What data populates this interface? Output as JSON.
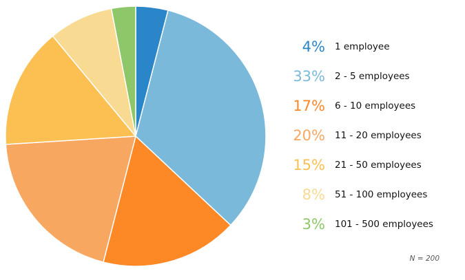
{
  "chart_data": {
    "type": "pie",
    "note": "N = 200",
    "slices": [
      {
        "value": 4,
        "label": "1 employee",
        "pct_label": "4%",
        "color": "#2a86c8"
      },
      {
        "value": 33,
        "label": "2 - 5 employees",
        "pct_label": "33%",
        "color": "#7ab9da"
      },
      {
        "value": 17,
        "label": "6 - 10 employees",
        "pct_label": "17%",
        "color": "#fd8826"
      },
      {
        "value": 20,
        "label": "11 - 20 employees",
        "pct_label": "20%",
        "color": "#f8a761"
      },
      {
        "value": 15,
        "label": "21 - 50 employees",
        "pct_label": "15%",
        "color": "#fcbf52"
      },
      {
        "value": 8,
        "label": "51 - 100 employees",
        "pct_label": "8%",
        "color": "#f9da93"
      },
      {
        "value": 3,
        "label": "101 - 500 employees",
        "pct_label": "3%",
        "color": "#8ec76a"
      }
    ]
  }
}
